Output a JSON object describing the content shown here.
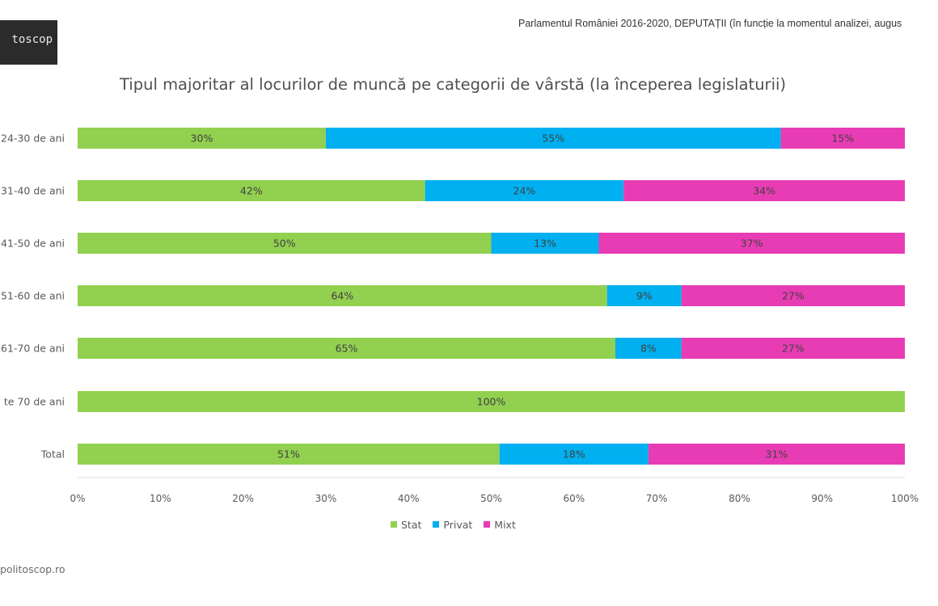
{
  "header": {
    "logo_text": "toscop",
    "source_line": "Parlamentul României 2016-2020, DEPUTAȚII (în funcție la momentul analizei, augus"
  },
  "footer": {
    "url": "politoscop.ro"
  },
  "colors": {
    "stat": "#92d050",
    "privat": "#00b0f0",
    "mixt": "#e83cb4"
  },
  "chart_data": {
    "type": "bar",
    "orientation": "horizontal",
    "stacked": "100%",
    "title": "Tipul majoritar al locurilor de muncă pe categorii de vârstă (la începerea legislaturii)",
    "categories": [
      "24-30 de ani",
      "31-40 de ani",
      "41-50 de ani",
      "51-60 de ani",
      "61-70 de ani",
      "te 70 de ani",
      "Total"
    ],
    "series": [
      {
        "name": "Stat",
        "color": "#92d050",
        "values": [
          30,
          42,
          50,
          64,
          65,
          100,
          51
        ]
      },
      {
        "name": "Privat",
        "color": "#00b0f0",
        "values": [
          55,
          24,
          13,
          9,
          8,
          0,
          18
        ]
      },
      {
        "name": "Mixt",
        "color": "#e83cb4",
        "values": [
          15,
          34,
          37,
          27,
          27,
          0,
          31
        ]
      }
    ],
    "data_labels": [
      [
        "30%",
        "55%",
        "15%"
      ],
      [
        "42%",
        "24%",
        "34%"
      ],
      [
        "50%",
        "13%",
        "37%"
      ],
      [
        "64%",
        "9%",
        "27%"
      ],
      [
        "65%",
        "8%",
        "27%"
      ],
      [
        "100%",
        "",
        ""
      ],
      [
        "51%",
        "18%",
        "31%"
      ]
    ],
    "x_ticks": [
      "0%",
      "10%",
      "20%",
      "30%",
      "40%",
      "50%",
      "60%",
      "70%",
      "80%",
      "90%",
      "100%"
    ],
    "xlim": [
      0,
      100
    ],
    "grid": false,
    "legend_position": "bottom"
  }
}
